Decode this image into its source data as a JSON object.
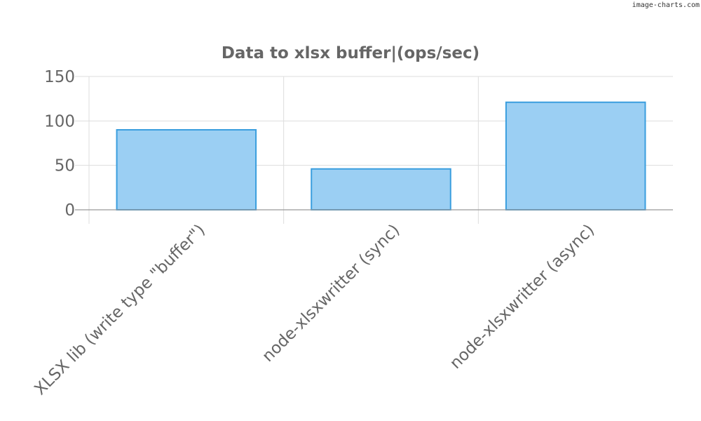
{
  "watermark": "image-charts.com",
  "colors": {
    "bar_fill": "#9bcff3",
    "bar_stroke": "#3a9ede",
    "text": "#666666",
    "grid": "#dddddd",
    "axis": "#999999"
  },
  "chart_data": {
    "type": "bar",
    "title": "Data to xlsx buffer|(ops/sec)",
    "xlabel": "",
    "ylabel": "",
    "categories": [
      "XLSX lib (write type \"buffer\")",
      "node-xlsxwritter (sync)",
      "node-xlsxwritter (async)"
    ],
    "values": [
      90,
      46,
      121
    ],
    "ylim": [
      0,
      150
    ],
    "yticks": [
      0,
      50,
      100,
      150
    ],
    "grid": true,
    "legend": "none"
  }
}
